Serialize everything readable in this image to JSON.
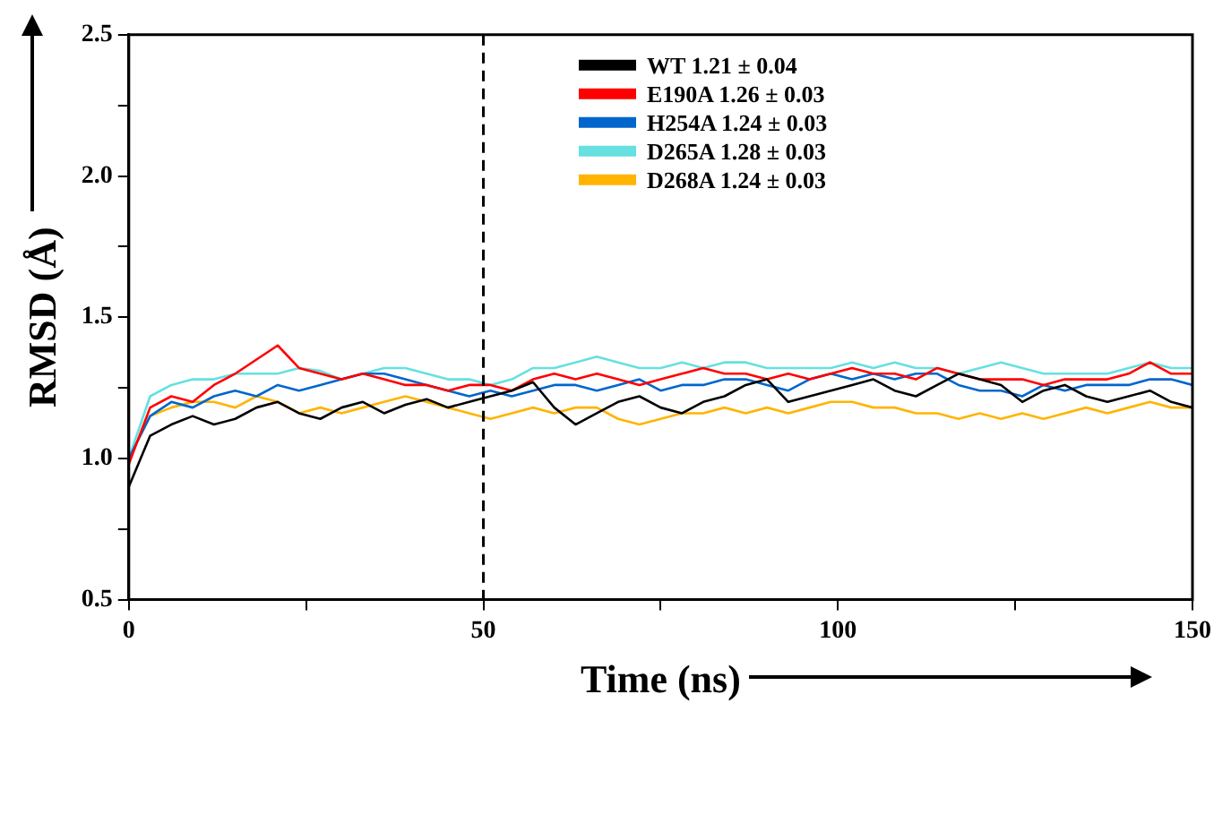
{
  "chart_data": {
    "type": "line",
    "xlabel": "Time (ns)",
    "ylabel": "RMSD (Å)",
    "x": [
      0,
      3,
      6,
      9,
      12,
      15,
      18,
      21,
      24,
      27,
      30,
      33,
      36,
      39,
      42,
      45,
      48,
      51,
      54,
      57,
      60,
      63,
      66,
      69,
      72,
      75,
      78,
      81,
      84,
      87,
      90,
      93,
      96,
      99,
      102,
      105,
      108,
      111,
      114,
      117,
      120,
      123,
      126,
      129,
      132,
      135,
      138,
      141,
      144,
      147,
      150
    ],
    "series": [
      {
        "name": "WT 1.21 ± 0.04",
        "color": "#000000",
        "values": [
          0.9,
          1.08,
          1.12,
          1.15,
          1.12,
          1.14,
          1.18,
          1.2,
          1.16,
          1.14,
          1.18,
          1.2,
          1.16,
          1.19,
          1.21,
          1.18,
          1.2,
          1.22,
          1.24,
          1.27,
          1.18,
          1.12,
          1.16,
          1.2,
          1.22,
          1.18,
          1.16,
          1.2,
          1.22,
          1.26,
          1.28,
          1.2,
          1.22,
          1.24,
          1.26,
          1.28,
          1.24,
          1.22,
          1.26,
          1.3,
          1.28,
          1.26,
          1.2,
          1.24,
          1.26,
          1.22,
          1.2,
          1.22,
          1.24,
          1.2,
          1.18
        ]
      },
      {
        "name": "E190A 1.26 ± 0.03",
        "color": "#ff0000",
        "values": [
          0.98,
          1.18,
          1.22,
          1.2,
          1.26,
          1.3,
          1.35,
          1.4,
          1.32,
          1.3,
          1.28,
          1.3,
          1.28,
          1.26,
          1.26,
          1.24,
          1.26,
          1.26,
          1.24,
          1.28,
          1.3,
          1.28,
          1.3,
          1.28,
          1.26,
          1.28,
          1.3,
          1.32,
          1.3,
          1.3,
          1.28,
          1.3,
          1.28,
          1.3,
          1.32,
          1.3,
          1.3,
          1.28,
          1.32,
          1.3,
          1.28,
          1.28,
          1.28,
          1.26,
          1.28,
          1.28,
          1.28,
          1.3,
          1.34,
          1.3,
          1.3
        ]
      },
      {
        "name": "H254A 1.24 ± 0.03",
        "color": "#0066cc",
        "values": [
          1.0,
          1.15,
          1.2,
          1.18,
          1.22,
          1.24,
          1.22,
          1.26,
          1.24,
          1.26,
          1.28,
          1.3,
          1.3,
          1.28,
          1.26,
          1.24,
          1.22,
          1.24,
          1.22,
          1.24,
          1.26,
          1.26,
          1.24,
          1.26,
          1.28,
          1.24,
          1.26,
          1.26,
          1.28,
          1.28,
          1.26,
          1.24,
          1.28,
          1.3,
          1.28,
          1.3,
          1.28,
          1.3,
          1.3,
          1.26,
          1.24,
          1.24,
          1.22,
          1.26,
          1.24,
          1.26,
          1.26,
          1.26,
          1.28,
          1.28,
          1.26
        ]
      },
      {
        "name": "D265A 1.28 ± 0.03",
        "color": "#66e0e0",
        "values": [
          1.0,
          1.22,
          1.26,
          1.28,
          1.28,
          1.3,
          1.3,
          1.3,
          1.32,
          1.31,
          1.28,
          1.3,
          1.32,
          1.32,
          1.3,
          1.28,
          1.28,
          1.26,
          1.28,
          1.32,
          1.32,
          1.34,
          1.36,
          1.34,
          1.32,
          1.32,
          1.34,
          1.32,
          1.34,
          1.34,
          1.32,
          1.32,
          1.32,
          1.32,
          1.34,
          1.32,
          1.34,
          1.32,
          1.32,
          1.3,
          1.32,
          1.34,
          1.32,
          1.3,
          1.3,
          1.3,
          1.3,
          1.32,
          1.34,
          1.32,
          1.32
        ]
      },
      {
        "name": "D268A 1.24 ± 0.03",
        "color": "#ffb400",
        "values": [
          1.0,
          1.15,
          1.18,
          1.2,
          1.2,
          1.18,
          1.22,
          1.2,
          1.16,
          1.18,
          1.16,
          1.18,
          1.2,
          1.22,
          1.2,
          1.18,
          1.16,
          1.14,
          1.16,
          1.18,
          1.16,
          1.18,
          1.18,
          1.14,
          1.12,
          1.14,
          1.16,
          1.16,
          1.18,
          1.16,
          1.18,
          1.16,
          1.18,
          1.2,
          1.2,
          1.18,
          1.18,
          1.16,
          1.16,
          1.14,
          1.16,
          1.14,
          1.16,
          1.14,
          1.16,
          1.18,
          1.16,
          1.18,
          1.2,
          1.18,
          1.18
        ]
      }
    ],
    "xlim": [
      0,
      150
    ],
    "xticks": [
      0,
      {
        "value": 25,
        "label": null
      },
      50,
      {
        "value": 75,
        "label": null
      },
      100,
      {
        "value": 125,
        "label": null
      },
      150
    ],
    "ylim": [
      0.5,
      2.5
    ],
    "yticks": [
      0.5,
      {
        "value": 0.75,
        "label": null
      },
      {
        "value": 1.0,
        "label": "1.0"
      },
      {
        "value": 1.25,
        "label": null
      },
      1.5,
      {
        "value": 1.75,
        "label": null
      },
      {
        "value": 2.0,
        "label": "2.0"
      },
      {
        "value": 2.25,
        "label": null
      },
      2.5
    ],
    "ref_lines": [
      {
        "axis": "x",
        "value": 50,
        "line_style": "dashed",
        "color": "#000000"
      }
    ],
    "grid": false,
    "legend": "top",
    "marker": "none",
    "line_style": "solid"
  }
}
